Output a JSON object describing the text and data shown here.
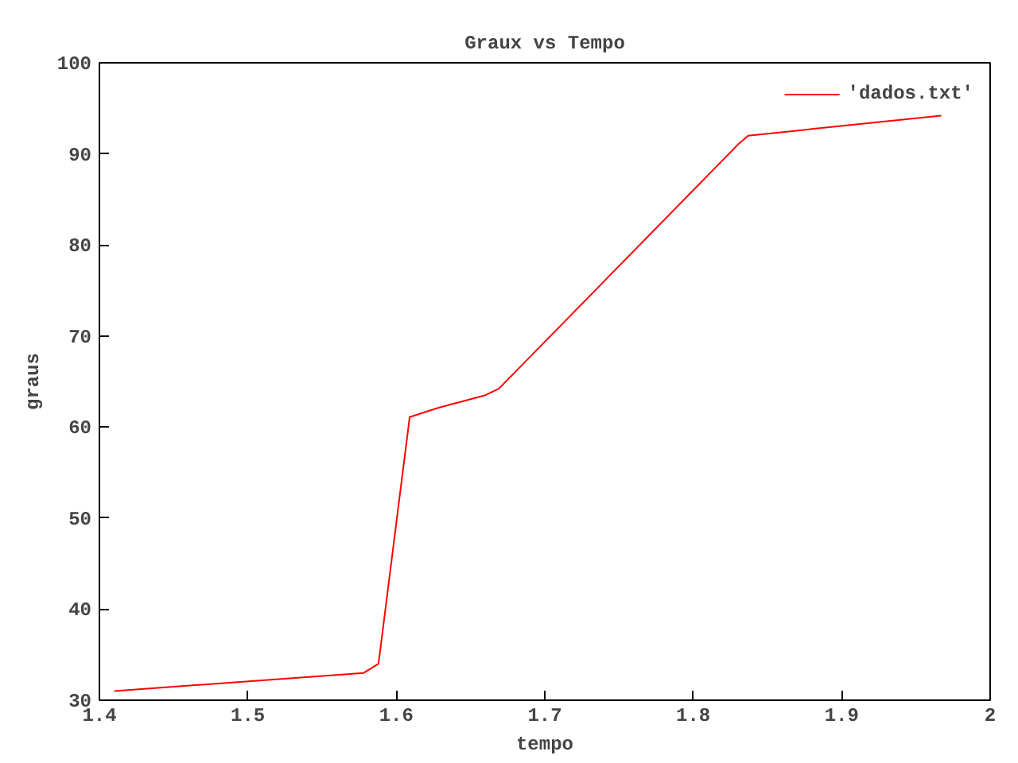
{
  "chart_data": {
    "type": "line",
    "title": "Graux vs Tempo",
    "xlabel": "tempo",
    "ylabel": "graus",
    "x": [
      1.41,
      1.578,
      1.588,
      1.609,
      1.628,
      1.66,
      1.669,
      1.83,
      1.837,
      1.967
    ],
    "series": [
      {
        "name": "'dados.txt'",
        "color": "#ff0000",
        "values": [
          31.0,
          33.0,
          34.0,
          61.1,
          62.1,
          63.5,
          64.2,
          91.0,
          92.0,
          94.2
        ]
      }
    ],
    "xlim": [
      1.4,
      2
    ],
    "ylim": [
      30,
      100
    ],
    "xticks": [
      1.4,
      1.5,
      1.6,
      1.7,
      1.8,
      1.9,
      2
    ],
    "yticks": [
      30,
      40,
      50,
      60,
      70,
      80,
      90,
      100
    ],
    "grid": false,
    "legend": "top right",
    "marker": "none",
    "line_style": "solid"
  }
}
